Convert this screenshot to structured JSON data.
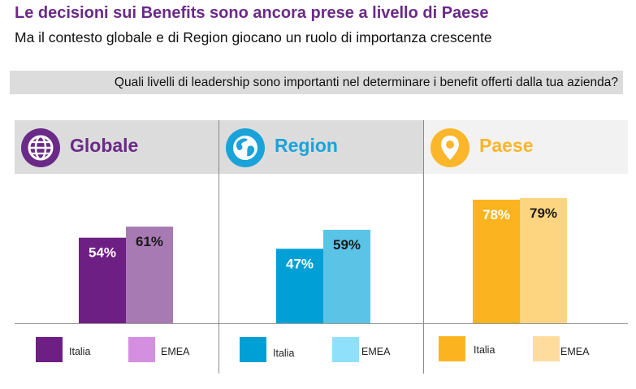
{
  "title": "Le decisioni sui Benefits sono ancora prese a livello di Paese",
  "subtitle": "Ma il contesto globale  e di Region giocano un ruolo di importanza  crescente",
  "question": "Quali livelli di leadership sono importanti nel determinare i benefit offerti dalla tua azienda?",
  "panels": [
    {
      "label": "Globale",
      "icon": "globe-icon",
      "label_color": "#6a2a87",
      "header_bg": "#dcdcdc",
      "icon_bg": "#6a2a87"
    },
    {
      "label": "Region",
      "icon": "earth-icon",
      "label_color": "#1aa3d9",
      "header_bg": "#dcdcdc",
      "icon_bg": "#1aa3d9"
    },
    {
      "label": "Paese",
      "icon": "location-pin-icon",
      "label_color": "#fbb629",
      "header_bg": "#f2f2f2",
      "icon_bg": "#fbb629"
    }
  ],
  "legend": [
    [
      {
        "label": "Italia",
        "color": "#6e1f84"
      },
      {
        "label": "EMEA",
        "color": "#d58fe0"
      }
    ],
    [
      {
        "label": "Italia",
        "color": "#00a0d6"
      },
      {
        "label": "EMEA",
        "color": "#8fe0fb"
      }
    ],
    [
      {
        "label": "Italia",
        "color": "#fbb41f"
      },
      {
        "label": "EMEA",
        "color": "#fddc9e"
      }
    ]
  ],
  "chart_data": {
    "type": "bar",
    "categories": [
      "Globale",
      "Region",
      "Paese"
    ],
    "series": [
      {
        "name": "Italia",
        "values": [
          54,
          47,
          78
        ],
        "labels": [
          "54%",
          "47%",
          "78%"
        ],
        "colors": [
          "#6e1f84",
          "#00a0d6",
          "#fbb41f"
        ],
        "label_color": "#ffffff"
      },
      {
        "name": "EMEA",
        "values": [
          61,
          59,
          79
        ],
        "labels": [
          "61%",
          "59%",
          "79%"
        ],
        "colors": [
          "#a77ab3",
          "#5bc3e6",
          "#fdd580"
        ],
        "label_color": "#1a1a1a"
      }
    ],
    "ylim": [
      0,
      100
    ]
  }
}
